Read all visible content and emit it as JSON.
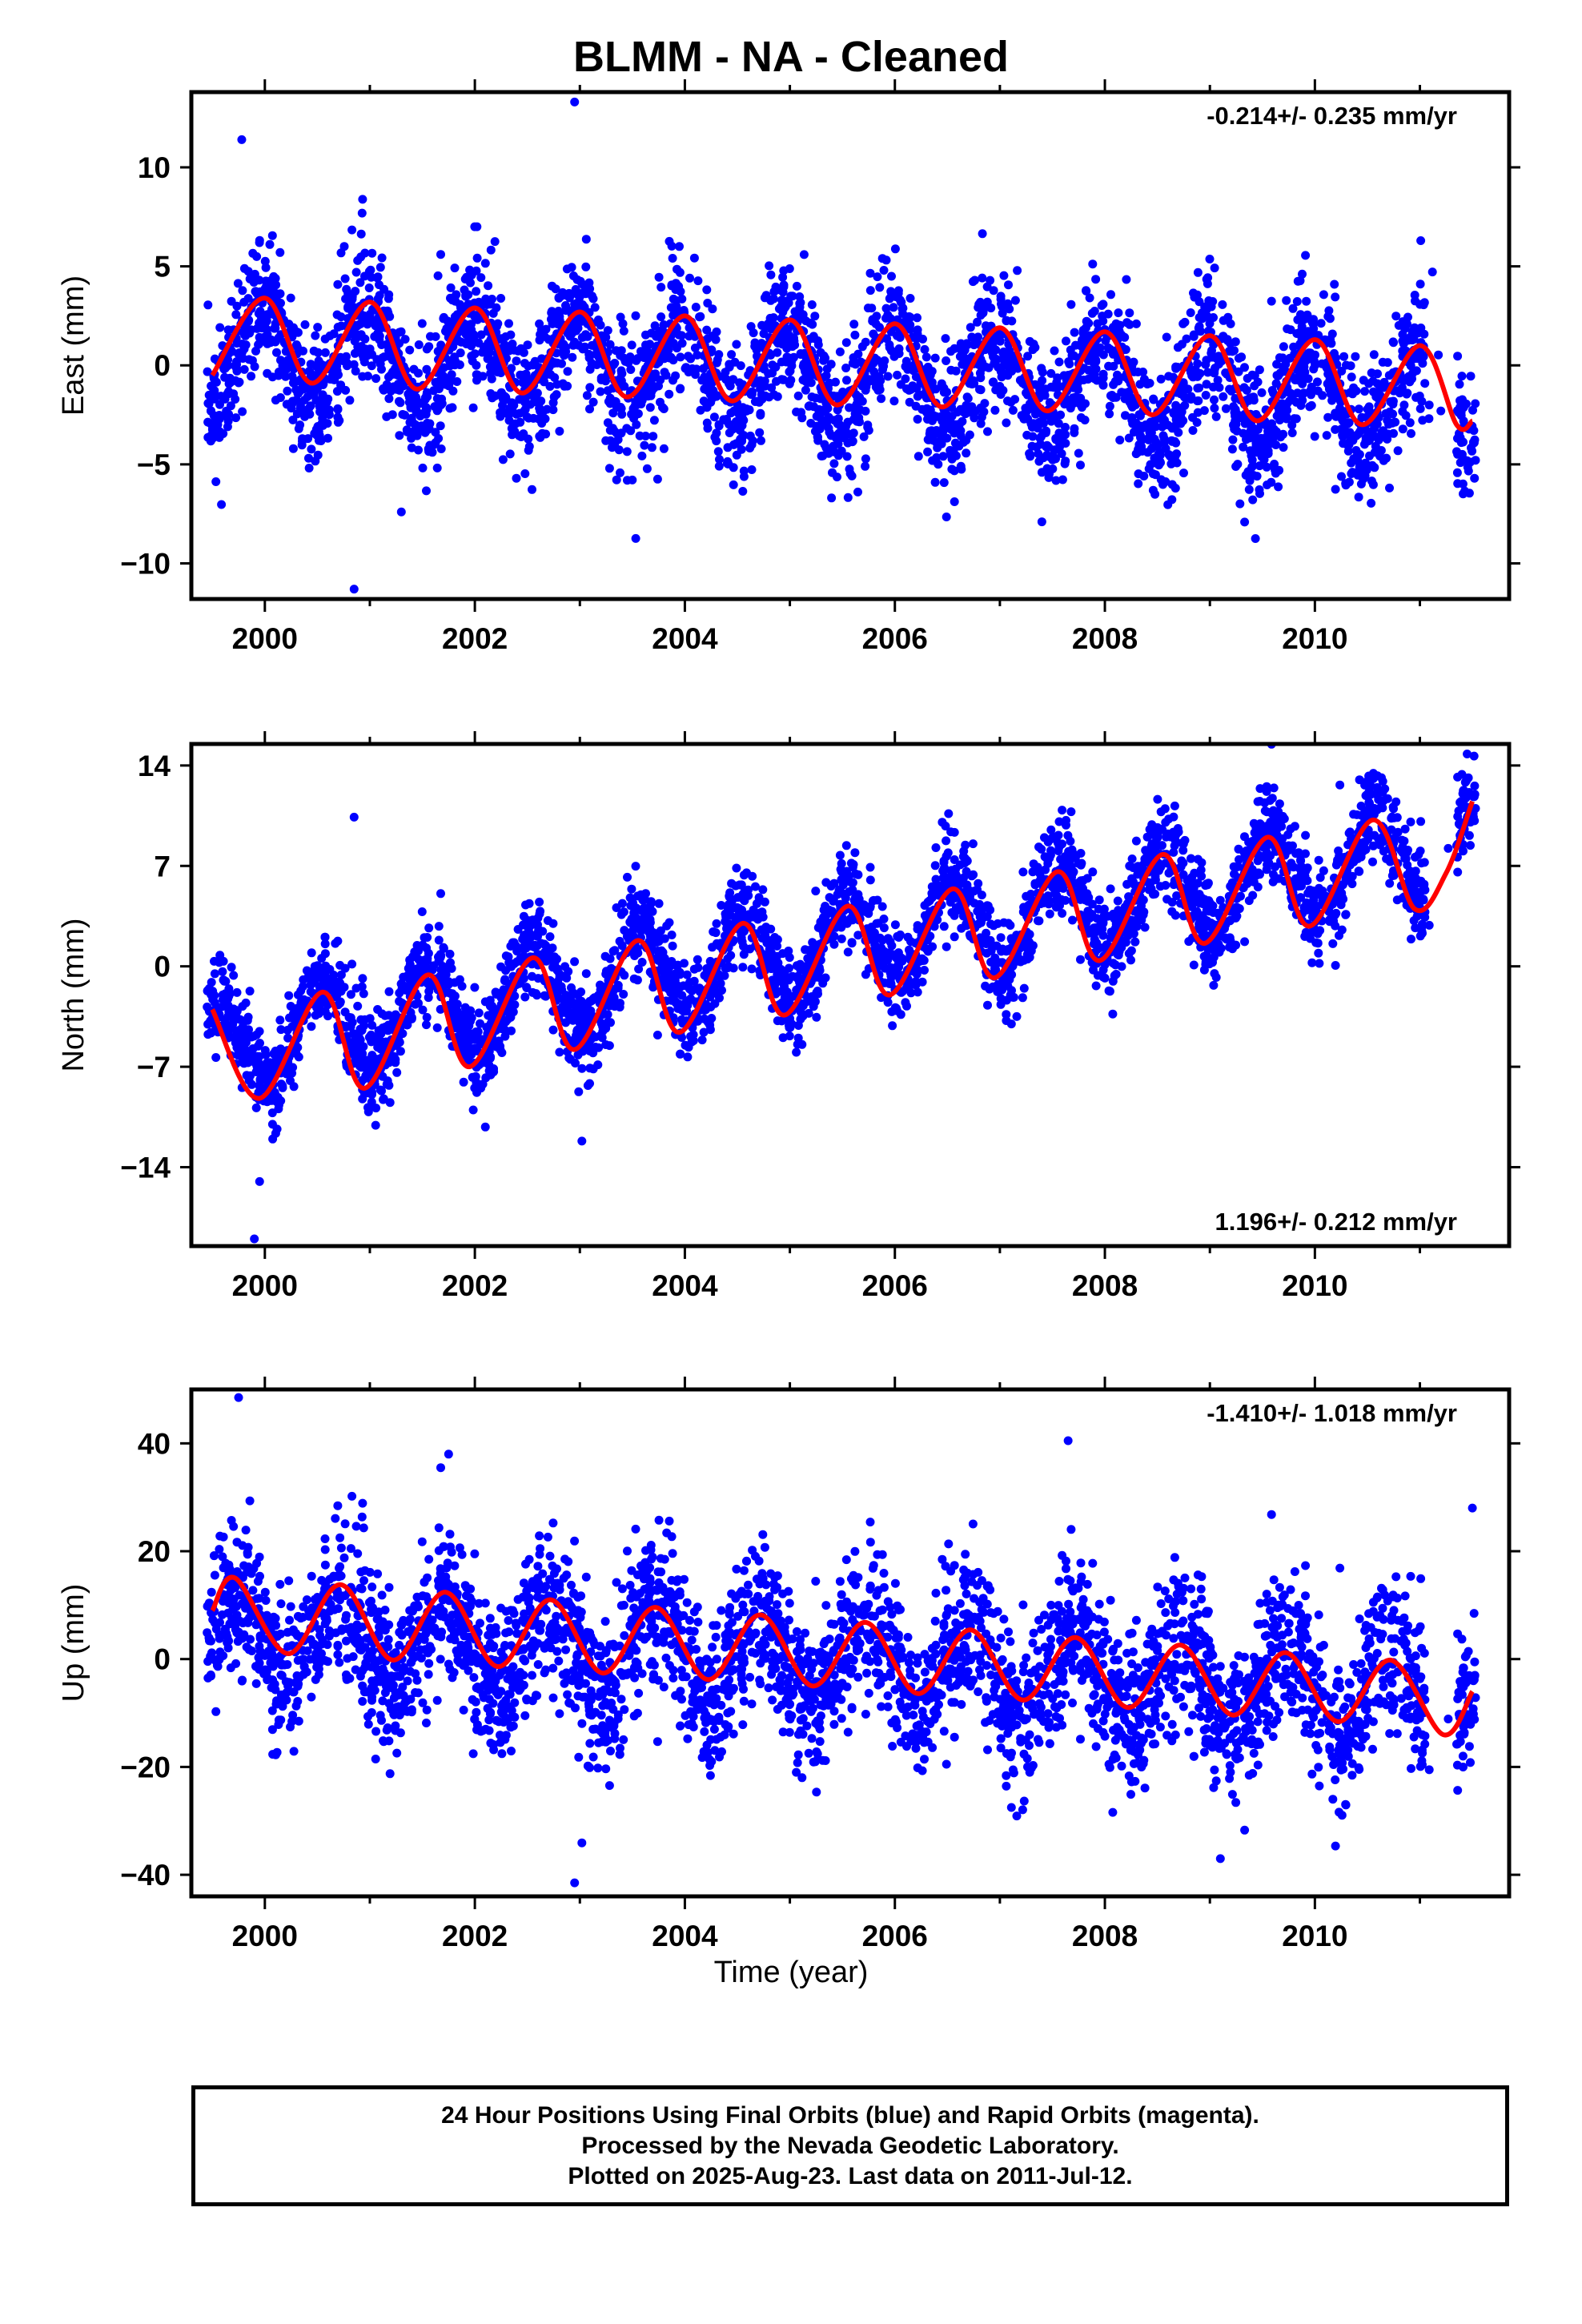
{
  "title": "BLMM  - NA - Cleaned",
  "colors": {
    "points": "#0000ff",
    "fit": "#ff0000",
    "frame": "#000000"
  },
  "chart_data": [
    {
      "type": "scatter",
      "ylabel": "East (mm)",
      "xlabel": "",
      "xlim": [
        1999.3,
        2011.85
      ],
      "ylim": [
        -11.8,
        13.8
      ],
      "xticks": [
        2000,
        2002,
        2004,
        2006,
        2008,
        2010
      ],
      "yticks": [
        -10,
        -5,
        0,
        5,
        10
      ],
      "rate_text": "-0.214+/- 0.235 mm/yr",
      "rate_position": "top-right",
      "series": [
        {
          "kind": "points",
          "x_start": 1999.45,
          "x_end": 2011.53,
          "trend_start": 0.8,
          "trend_end": -1.8,
          "seasonal_amplitude": 2.4,
          "seasonal_peak_year_fraction": 0.98,
          "noise_sd": 1.7,
          "outliers": [
            [
              1999.78,
              11.4
            ],
            [
              2002.95,
              13.3
            ],
            [
              2000.85,
              -11.3
            ],
            [
              2001.3,
              -7.4
            ],
            [
              2007.4,
              -7.9
            ]
          ]
        },
        {
          "kind": "fit",
          "points": [
            [
              1999.5,
              -0.5
            ],
            [
              2000.0,
              3.4
            ],
            [
              2000.45,
              -0.9
            ],
            [
              2001.0,
              3.2
            ],
            [
              2001.45,
              -1.2
            ],
            [
              2002.0,
              2.9
            ],
            [
              2002.45,
              -1.4
            ],
            [
              2003.0,
              2.7
            ],
            [
              2003.45,
              -1.6
            ],
            [
              2004.0,
              2.5
            ],
            [
              2004.45,
              -1.8
            ],
            [
              2005.0,
              2.3
            ],
            [
              2005.45,
              -2.0
            ],
            [
              2006.0,
              2.1
            ],
            [
              2006.45,
              -2.1
            ],
            [
              2007.0,
              1.9
            ],
            [
              2007.45,
              -2.3
            ],
            [
              2008.0,
              1.7
            ],
            [
              2008.45,
              -2.5
            ],
            [
              2009.0,
              1.5
            ],
            [
              2009.45,
              -2.8
            ],
            [
              2010.0,
              1.3
            ],
            [
              2010.45,
              -3.0
            ],
            [
              2011.0,
              1.0
            ],
            [
              2011.35,
              -3.0
            ],
            [
              2011.5,
              -2.8
            ]
          ]
        }
      ]
    },
    {
      "type": "scatter",
      "ylabel": "North (mm)",
      "xlabel": "",
      "xlim": [
        1999.3,
        2011.85
      ],
      "ylim": [
        -19.5,
        15.5
      ],
      "xticks": [
        2000,
        2002,
        2004,
        2006,
        2008,
        2010
      ],
      "yticks": [
        -14,
        -7,
        0,
        7,
        14
      ],
      "rate_text": "1.196+/- 0.212 mm/yr",
      "rate_position": "bottom-right",
      "series": [
        {
          "kind": "points",
          "x_start": 1999.45,
          "x_end": 2011.53,
          "trend_start": -5.5,
          "trend_end": 8.5,
          "seasonal_amplitude": 3.2,
          "seasonal_peak_year_fraction": 0.55,
          "noise_sd": 1.6,
          "outliers": [
            [
              2000.85,
              10.4
            ],
            [
              1999.9,
              -19.0
            ],
            [
              1999.95,
              -15.0
            ],
            [
              2011.45,
              14.8
            ],
            [
              2002.1,
              -11.2
            ]
          ]
        },
        {
          "kind": "fit",
          "points": [
            [
              1999.5,
              -3.0
            ],
            [
              1999.95,
              -9.2
            ],
            [
              2000.55,
              -1.8
            ],
            [
              2000.95,
              -8.5
            ],
            [
              2001.55,
              -0.6
            ],
            [
              2001.95,
              -7.0
            ],
            [
              2002.55,
              0.6
            ],
            [
              2002.95,
              -5.8
            ],
            [
              2003.55,
              1.8
            ],
            [
              2003.95,
              -4.6
            ],
            [
              2004.55,
              3.0
            ],
            [
              2004.95,
              -3.4
            ],
            [
              2005.55,
              4.2
            ],
            [
              2005.95,
              -2.0
            ],
            [
              2006.55,
              5.4
            ],
            [
              2006.95,
              -0.8
            ],
            [
              2007.55,
              6.6
            ],
            [
              2007.95,
              0.4
            ],
            [
              2008.55,
              7.8
            ],
            [
              2008.95,
              1.6
            ],
            [
              2009.55,
              9.0
            ],
            [
              2009.95,
              2.8
            ],
            [
              2010.55,
              10.2
            ],
            [
              2010.95,
              4.0
            ],
            [
              2011.25,
              6.5
            ],
            [
              2011.5,
              11.5
            ]
          ]
        }
      ]
    },
    {
      "type": "scatter",
      "ylabel": "Up (mm)",
      "xlabel": "Time (year)",
      "xlim": [
        1999.3,
        2011.85
      ],
      "ylim": [
        -44,
        50
      ],
      "xticks": [
        2000,
        2002,
        2004,
        2006,
        2008,
        2010
      ],
      "yticks": [
        -40,
        -20,
        0,
        20,
        40
      ],
      "rate_text": "-1.410+/- 1.018 mm/yr",
      "rate_position": "top-right",
      "series": [
        {
          "kind": "points",
          "x_start": 1999.45,
          "x_end": 2011.53,
          "trend_start": 5.5,
          "trend_end": -7.0,
          "seasonal_amplitude": 7.5,
          "seasonal_peak_year_fraction": 0.72,
          "noise_sd": 7.0,
          "outliers": [
            [
              1999.75,
              48.5
            ],
            [
              2002.95,
              -41.5
            ],
            [
              2009.1,
              -37.0
            ],
            [
              2007.65,
              40.5
            ],
            [
              2001.75,
              38.0
            ],
            [
              2011.5,
              28.0
            ]
          ]
        },
        {
          "kind": "fit",
          "points": [
            [
              1999.5,
              9.0
            ],
            [
              1999.72,
              15.0
            ],
            [
              2000.22,
              1.0
            ],
            [
              2000.72,
              13.8
            ],
            [
              2001.22,
              -0.2
            ],
            [
              2001.72,
              12.4
            ],
            [
              2002.22,
              -1.4
            ],
            [
              2002.72,
              11.0
            ],
            [
              2003.22,
              -2.6
            ],
            [
              2003.72,
              9.6
            ],
            [
              2004.22,
              -3.8
            ],
            [
              2004.72,
              8.2
            ],
            [
              2005.22,
              -5.0
            ],
            [
              2005.72,
              6.8
            ],
            [
              2006.22,
              -6.4
            ],
            [
              2006.72,
              5.4
            ],
            [
              2007.22,
              -7.6
            ],
            [
              2007.72,
              4.0
            ],
            [
              2008.22,
              -9.0
            ],
            [
              2008.72,
              2.6
            ],
            [
              2009.22,
              -10.4
            ],
            [
              2009.72,
              1.2
            ],
            [
              2010.22,
              -11.6
            ],
            [
              2010.72,
              -0.2
            ],
            [
              2011.22,
              -14.0
            ],
            [
              2011.5,
              -6.0
            ]
          ]
        }
      ]
    }
  ],
  "footer": {
    "line1": "24 Hour Positions Using Final Orbits (blue) and Rapid Orbits (magenta).",
    "line2": "Processed by the Nevada Geodetic Laboratory.",
    "line3": "Plotted on 2025-Aug-23. Last data on 2011-Jul-12."
  }
}
